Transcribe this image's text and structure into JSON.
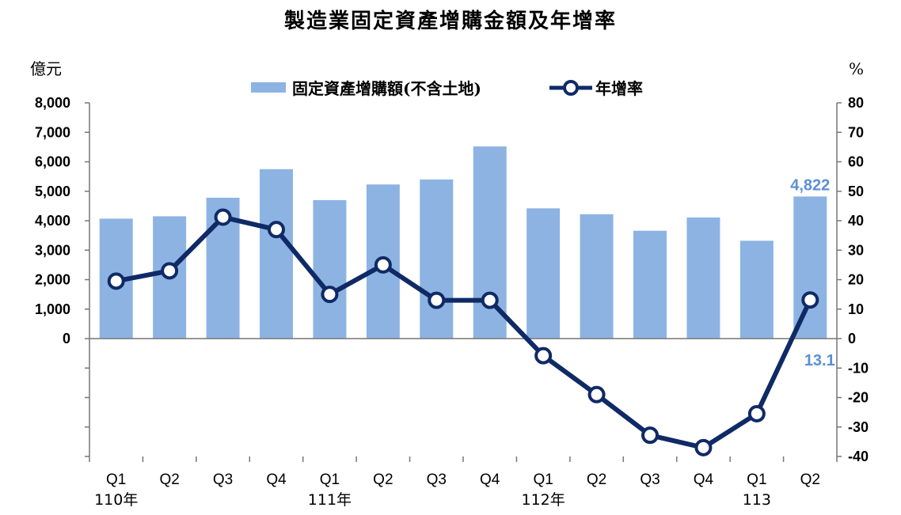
{
  "title": "製造業固定資產增購金額及年增率",
  "left_unit": "億元",
  "right_unit": "%",
  "legend": {
    "bar_label": "固定資產增購額(不含土地)",
    "line_label": "年增率"
  },
  "colors": {
    "bar": "#8db3e2",
    "line": "#0f2a66",
    "data_label": "#5b8fd6"
  },
  "chart_data": {
    "type": "bar",
    "categories": [
      "Q1",
      "Q2",
      "Q3",
      "Q4",
      "Q1",
      "Q2",
      "Q3",
      "Q4",
      "Q1",
      "Q2",
      "Q3",
      "Q4",
      "Q1",
      "Q2"
    ],
    "year_labels": [
      {
        "index": 0,
        "text": "110年"
      },
      {
        "index": 4,
        "text": "111年"
      },
      {
        "index": 8,
        "text": "112年"
      },
      {
        "index": 12,
        "text": "113"
      }
    ],
    "series": [
      {
        "name": "固定資產增購額(不含土地)",
        "type": "bar",
        "axis": "left",
        "values": [
          4070,
          4150,
          4780,
          5750,
          4700,
          5230,
          5400,
          6520,
          4420,
          4220,
          3660,
          4110,
          3320,
          4822
        ]
      },
      {
        "name": "年增率",
        "type": "line",
        "axis": "right",
        "values": [
          19.5,
          23,
          41.2,
          37,
          15,
          25,
          13,
          13,
          -5.8,
          -19,
          -32.8,
          -37,
          -25.5,
          13.1
        ]
      }
    ],
    "left_axis": {
      "ticks": [
        "8,000",
        "7,000",
        "6,000",
        "5,000",
        "4,000",
        "3,000",
        "2,000",
        "1,000",
        "0"
      ],
      "tick_values": [
        8000,
        7000,
        6000,
        5000,
        4000,
        3000,
        2000,
        1000,
        0
      ],
      "ylim": [
        -4000,
        8000
      ]
    },
    "right_axis": {
      "ticks": [
        "80",
        "70",
        "60",
        "50",
        "40",
        "30",
        "20",
        "10",
        "0",
        "-10",
        "-20",
        "-30",
        "-40"
      ],
      "tick_values": [
        80,
        70,
        60,
        50,
        40,
        30,
        20,
        10,
        0,
        -10,
        -20,
        -30,
        -40
      ],
      "ylim": [
        -40,
        80
      ]
    },
    "data_labels": [
      {
        "series": 0,
        "index": 13,
        "text": "4,822"
      },
      {
        "series": 1,
        "index": 13,
        "text": "13.1"
      }
    ],
    "grid": false,
    "legend_position": "top"
  }
}
